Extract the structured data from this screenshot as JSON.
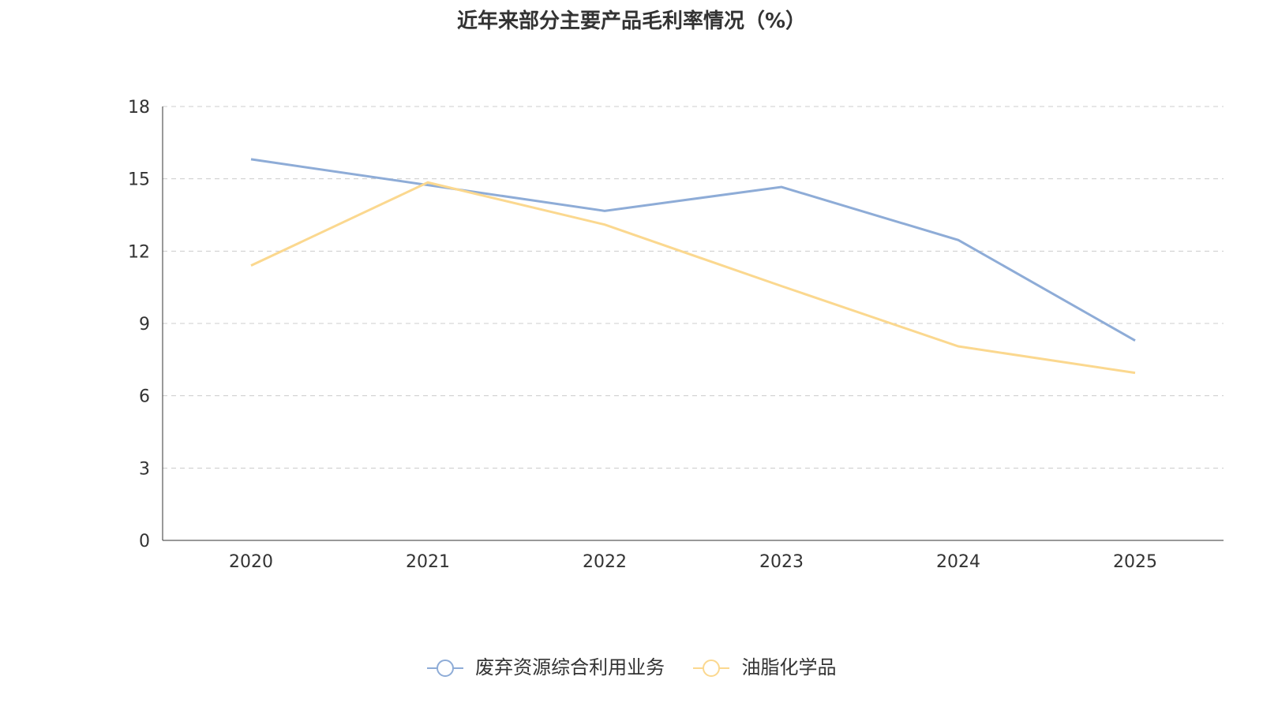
{
  "chart_data": {
    "type": "line",
    "title": "近年来部分主要产品毛利率情况（%）",
    "categories": [
      "2020",
      "2021",
      "2022",
      "2023",
      "2024",
      "2025"
    ],
    "ylim": [
      0,
      18
    ],
    "yticks": [
      0,
      3,
      6,
      9,
      12,
      15,
      18
    ],
    "series": [
      {
        "name": "废弃资源综合利用业务",
        "color": "#8eacd7",
        "values": [
          15.81,
          null,
          13.67,
          14.66,
          12.46,
          8.29
        ]
      },
      {
        "name": "油脂化学品",
        "color": "#fbd88f",
        "values": [
          11.4,
          14.85,
          13.1,
          10.55,
          8.05,
          6.95
        ]
      }
    ]
  }
}
